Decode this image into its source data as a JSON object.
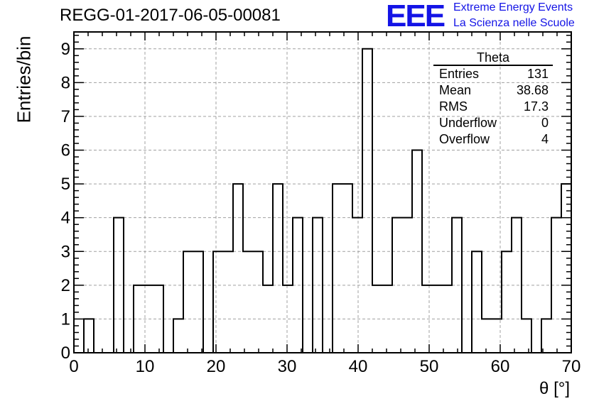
{
  "header": {
    "run_title": "REGG-01-2017-06-05-00081",
    "logo_mark": "EEE",
    "logo_line1": "Extreme Energy Events",
    "logo_line2": "La Scienza nelle Scuole"
  },
  "stats": {
    "title": "Theta",
    "rows": [
      {
        "label": "Entries",
        "value": "131"
      },
      {
        "label": "Mean",
        "value": "38.68"
      },
      {
        "label": "RMS",
        "value": "17.3"
      },
      {
        "label": "Underflow",
        "value": "0"
      },
      {
        "label": "Overflow",
        "value": "4"
      }
    ]
  },
  "colors": {
    "line": "#000000",
    "grid": "#a0a0a0",
    "logo": "#1414e6"
  },
  "chart_data": {
    "type": "bar",
    "style": "step-histogram",
    "title": "",
    "xlabel": "θ [°]",
    "ylabel": "Entries/bin",
    "xlim": [
      0,
      70
    ],
    "ylim": [
      0,
      9.5
    ],
    "grid": true,
    "legend": "none",
    "bin_width": 1.4,
    "x_ticks": [
      0,
      10,
      20,
      30,
      40,
      50,
      60,
      70
    ],
    "y_ticks": [
      0,
      1,
      2,
      3,
      4,
      5,
      6,
      7,
      8,
      9
    ],
    "values": [
      0,
      1,
      0,
      0,
      4,
      0,
      2,
      2,
      2,
      0,
      1,
      3,
      3,
      0,
      3,
      3,
      5,
      3,
      3,
      2,
      5,
      2,
      4,
      0,
      4,
      0,
      5,
      5,
      4,
      9,
      2,
      2,
      4,
      4,
      6,
      2,
      2,
      2,
      4,
      0,
      3,
      1,
      1,
      3,
      4,
      1,
      0,
      1,
      4,
      5
    ]
  }
}
